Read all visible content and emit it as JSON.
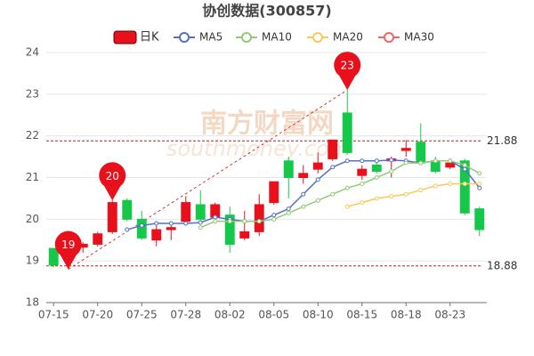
{
  "chart_data": {
    "type": "candlestick",
    "title": "协创数据(300857)",
    "candle_name": "日K",
    "up_color": "#e8101a",
    "down_color": "#14c84a",
    "categories": [
      "07-15",
      null,
      null,
      "07-20",
      null,
      null,
      "07-25",
      null,
      null,
      "07-28",
      null,
      null,
      "08-02",
      null,
      null,
      "08-05",
      null,
      null,
      "08-10",
      null,
      null,
      "08-15",
      null,
      null,
      "08-18",
      null,
      null,
      "08-23",
      null,
      null
    ],
    "open": [
      19.3,
      19.35,
      19.33,
      19.4,
      19.7,
      20.45,
      20.0,
      19.5,
      19.75,
      19.95,
      20.35,
      20.05,
      20.1,
      19.55,
      19.7,
      20.4,
      21.4,
      21.0,
      21.2,
      21.45,
      22.55,
      21.05,
      21.3,
      21.4,
      21.65,
      21.85,
      21.4,
      21.25,
      21.4,
      20.25
    ],
    "close": [
      18.9,
      19.2,
      19.4,
      19.65,
      20.4,
      20.0,
      19.55,
      19.75,
      19.8,
      20.4,
      20.0,
      20.35,
      19.4,
      19.7,
      20.35,
      20.9,
      21.0,
      21.1,
      21.35,
      21.9,
      21.6,
      21.2,
      21.15,
      21.45,
      21.7,
      21.35,
      21.15,
      21.35,
      20.15,
      19.75
    ],
    "high": [
      19.3,
      19.4,
      19.45,
      19.7,
      20.45,
      20.5,
      20.2,
      19.85,
      19.9,
      20.55,
      20.7,
      20.4,
      20.3,
      20.2,
      20.6,
      20.9,
      21.5,
      21.3,
      21.6,
      21.9,
      23.1,
      21.3,
      21.35,
      21.5,
      21.9,
      22.3,
      21.5,
      21.45,
      21.45,
      20.3
    ],
    "low": [
      18.85,
      18.8,
      19.2,
      19.35,
      19.65,
      19.95,
      19.5,
      19.35,
      19.5,
      19.9,
      19.9,
      19.95,
      19.2,
      19.5,
      19.6,
      20.35,
      20.5,
      20.85,
      21.1,
      21.4,
      21.55,
      20.95,
      21.1,
      21.0,
      21.5,
      21.3,
      21.1,
      21.2,
      20.1,
      19.6
    ],
    "series": [
      {
        "name": "MA5",
        "color": "#5470c6",
        "values": [
          null,
          null,
          null,
          null,
          null,
          19.75,
          19.85,
          19.9,
          19.9,
          19.9,
          19.92,
          20.05,
          20.0,
          19.95,
          19.95,
          20.1,
          20.25,
          20.6,
          20.95,
          21.25,
          21.4,
          21.4,
          21.4,
          21.42,
          21.4,
          21.35,
          21.4,
          21.4,
          21.2,
          20.75
        ]
      },
      {
        "name": "MA10",
        "color": "#91cc75",
        "values": [
          null,
          null,
          null,
          null,
          null,
          null,
          null,
          null,
          null,
          null,
          19.8,
          19.95,
          19.95,
          19.95,
          19.95,
          20.0,
          20.15,
          20.3,
          20.45,
          20.6,
          20.75,
          20.85,
          21.0,
          21.15,
          21.35,
          21.35,
          21.4,
          21.4,
          21.3,
          21.1
        ]
      },
      {
        "name": "MA20",
        "color": "#fac858",
        "values": [
          null,
          null,
          null,
          null,
          null,
          null,
          null,
          null,
          null,
          null,
          null,
          null,
          null,
          null,
          null,
          null,
          null,
          null,
          null,
          null,
          20.3,
          20.4,
          20.5,
          20.55,
          20.6,
          20.7,
          20.8,
          20.85,
          20.85,
          20.85
        ]
      },
      {
        "name": "MA30",
        "color": "#ee6666",
        "values": [
          null,
          null,
          null,
          null,
          null,
          null,
          null,
          null,
          null,
          null,
          null,
          null,
          null,
          null,
          null,
          null,
          null,
          null,
          null,
          null,
          null,
          null,
          null,
          null,
          null,
          null,
          null,
          null,
          null,
          null
        ]
      }
    ],
    "ylim": [
      18,
      24
    ],
    "yticks": [
      18,
      19,
      20,
      21,
      22,
      23,
      24
    ],
    "grid": true,
    "ref_lines": [
      21.88,
      18.88
    ],
    "pins": [
      {
        "value": 18.8,
        "label": "19"
      },
      {
        "value": 20.45,
        "label": "20"
      },
      {
        "value": 23.1,
        "label": "23"
      }
    ],
    "watermark": [
      "南方财富网",
      "southmoney.com"
    ]
  }
}
